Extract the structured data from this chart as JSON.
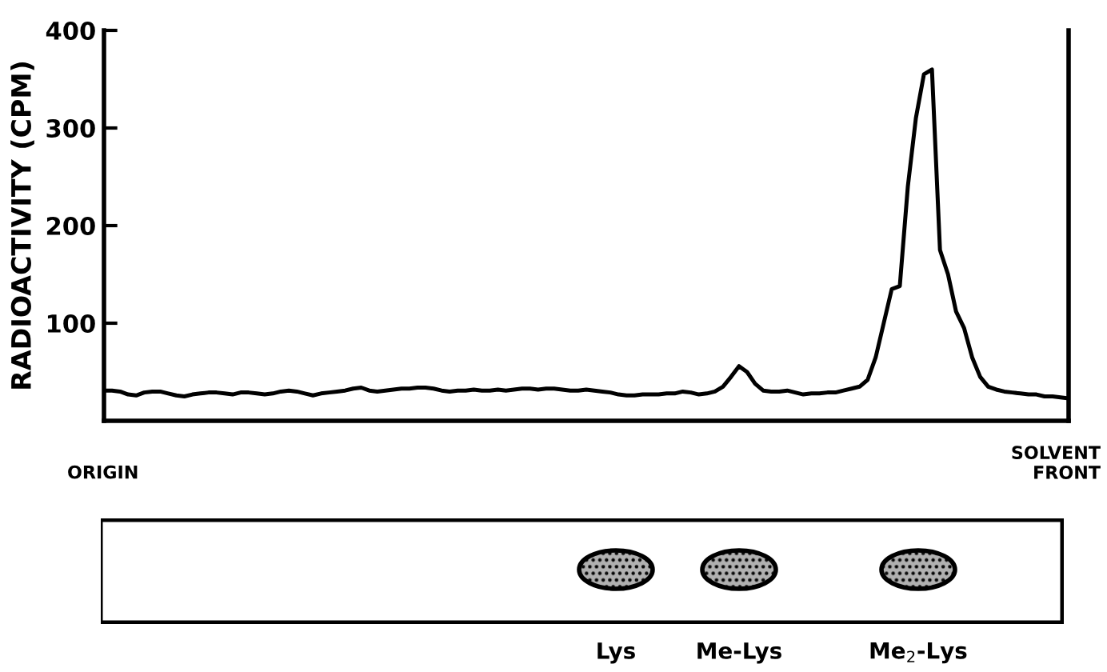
{
  "chart_data": {
    "type": "line",
    "ylabel": "RADIOACTIVITY (CPM)",
    "categories": [
      null,
      null,
      null,
      null,
      null,
      null,
      null,
      null,
      null,
      null,
      null,
      null,
      null,
      null,
      null,
      null,
      null,
      null,
      null,
      null,
      null,
      null,
      null,
      null,
      null,
      null,
      null,
      null,
      null,
      null,
      null,
      null,
      null,
      null,
      null,
      null,
      null,
      null,
      null,
      null,
      null,
      null,
      null,
      null,
      null,
      null,
      null,
      null,
      null,
      null,
      null,
      null,
      null,
      null,
      null,
      null,
      null,
      null,
      null,
      null,
      null,
      null,
      null,
      null,
      null,
      null,
      null,
      null,
      null,
      null,
      null,
      null,
      null,
      null,
      null,
      null,
      null,
      null,
      null,
      null,
      null,
      null,
      null,
      null,
      null,
      null,
      null,
      null,
      null,
      null,
      null,
      null,
      null,
      null,
      null,
      null,
      null,
      null,
      null,
      null,
      null,
      null,
      null,
      null,
      null,
      null,
      null,
      null,
      null,
      null,
      null,
      null,
      null,
      null,
      null,
      null,
      null,
      null,
      null,
      null,
      null
    ],
    "series": [
      {
        "color": "#000000",
        "values": [
          31,
          31,
          30,
          27,
          26,
          29,
          30,
          30,
          28,
          26,
          25,
          27,
          28,
          29,
          29,
          28,
          27,
          29,
          29,
          28,
          27,
          28,
          30,
          31,
          30,
          28,
          26,
          28,
          29,
          30,
          31,
          33,
          34,
          31,
          30,
          31,
          32,
          33,
          33,
          34,
          34,
          33,
          31,
          30,
          31,
          31,
          32,
          31,
          31,
          32,
          31,
          32,
          33,
          33,
          32,
          33,
          33,
          32,
          31,
          31,
          32,
          31,
          30,
          29,
          27,
          26,
          26,
          27,
          27,
          27,
          28,
          28,
          30,
          29,
          27,
          28,
          30,
          35,
          45,
          56,
          50,
          38,
          31,
          30,
          30,
          31,
          29,
          27,
          28,
          28,
          29,
          29,
          31,
          33,
          35,
          42,
          65,
          100,
          135,
          138,
          240,
          310,
          355,
          360,
          175,
          150,
          112,
          95,
          65,
          45,
          35,
          32,
          30,
          29,
          28,
          27,
          27,
          25,
          25,
          24,
          23
        ]
      }
    ],
    "ylim": [
      0,
      400
    ],
    "yticks": [
      100,
      200,
      300,
      400
    ],
    "tick_labels": "y",
    "grid": false,
    "line_style": "solid",
    "annotations": [
      "ORIGIN",
      "SOLVENT\nFRONT",
      "Lys",
      "Me-Lys",
      "Me$_{2}$-Lys"
    ]
  }
}
